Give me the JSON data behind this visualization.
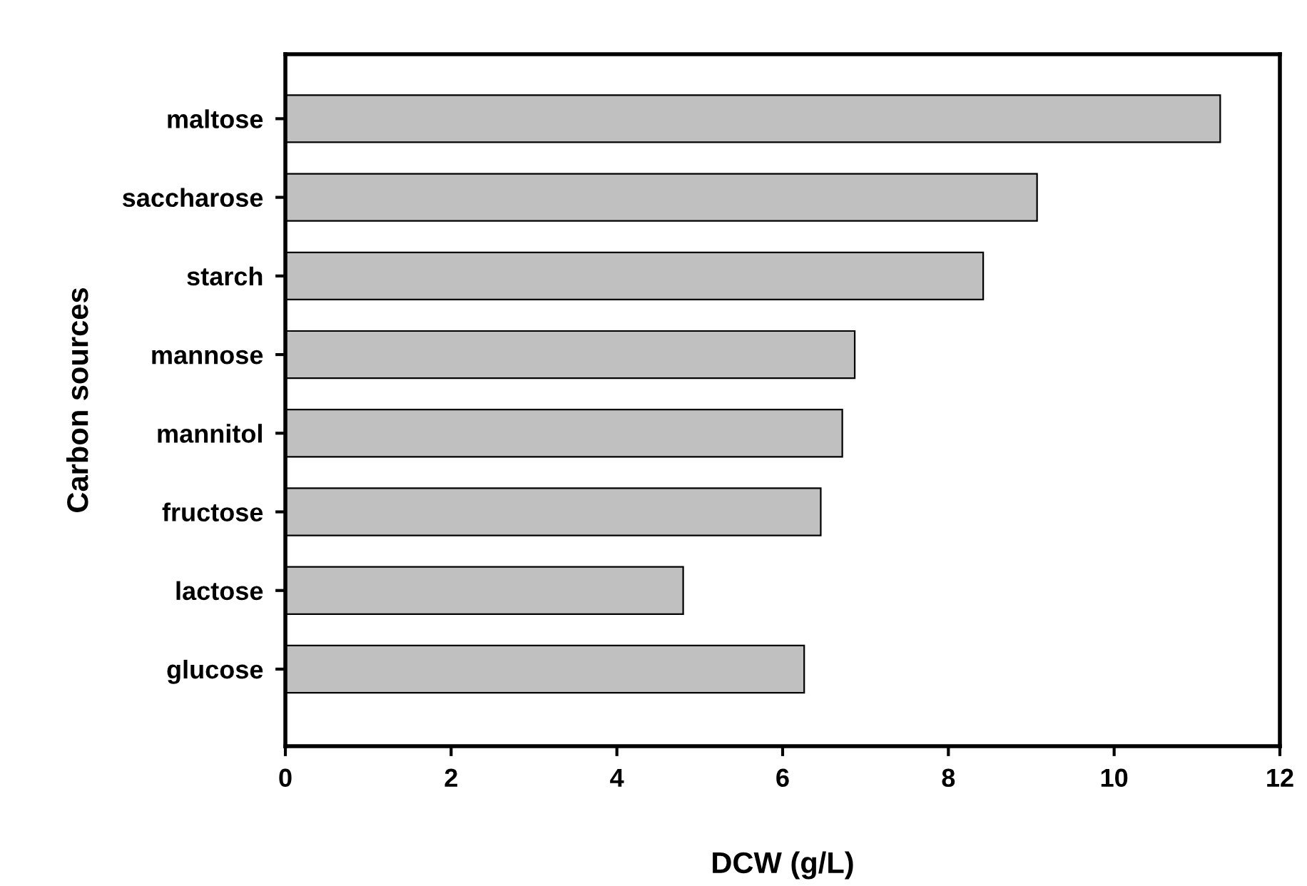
{
  "chart_data": {
    "type": "bar",
    "orientation": "horizontal",
    "xlabel": "DCW (g/L)",
    "ylabel": "Carbon sources",
    "categories": [
      "maltose",
      "saccharose",
      "starch",
      "mannose",
      "mannitol",
      "fructose",
      "lactose",
      "glucose"
    ],
    "values": [
      11.28,
      9.07,
      8.42,
      6.87,
      6.72,
      6.46,
      4.8,
      6.26
    ],
    "color": "#c0c0c0",
    "xlim": [
      0,
      12
    ],
    "xticks": [
      0,
      2,
      4,
      6,
      8,
      10,
      12
    ],
    "grid": false
  }
}
